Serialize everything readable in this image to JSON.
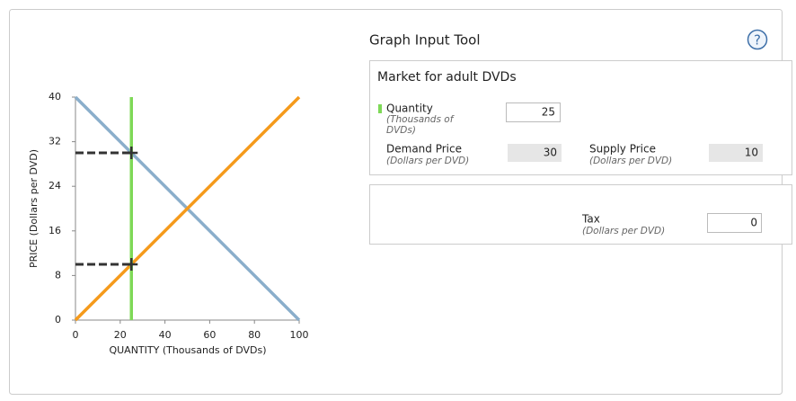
{
  "chart_data": {
    "type": "line",
    "xlabel": "QUANTITY (Thousands of DVDs)",
    "ylabel": "PRICE (Dollars per DVD)",
    "x": [
      0,
      100
    ],
    "series": [
      {
        "color": "#8aaecb",
        "values": [
          40,
          0
        ]
      },
      {
        "color": "#f59a1b",
        "values": [
          0,
          40
        ]
      }
    ],
    "xlim": [
      0,
      100
    ],
    "ylim": [
      0,
      40
    ],
    "xticks": [
      0,
      20,
      40,
      60,
      80,
      100
    ],
    "yticks": [
      0,
      8,
      16,
      24,
      32,
      40
    ],
    "quantity_color": "#7ed957",
    "guide_color": "#333333"
  },
  "tool": {
    "title": "Graph Input Tool",
    "help": "?",
    "market_title": "Market for adult DVDs",
    "quantity": {
      "label": "Quantity",
      "unit_lines": [
        "(Thousands of",
        "DVDs)"
      ],
      "value": 25
    },
    "demand_price": {
      "label": "Demand Price",
      "unit": "(Dollars per DVD)",
      "value": 30
    },
    "supply_price": {
      "label": "Supply Price",
      "unit": "(Dollars per DVD)",
      "value": 10
    },
    "tax": {
      "label": "Tax",
      "unit": "(Dollars per DVD)",
      "value": 0
    }
  }
}
